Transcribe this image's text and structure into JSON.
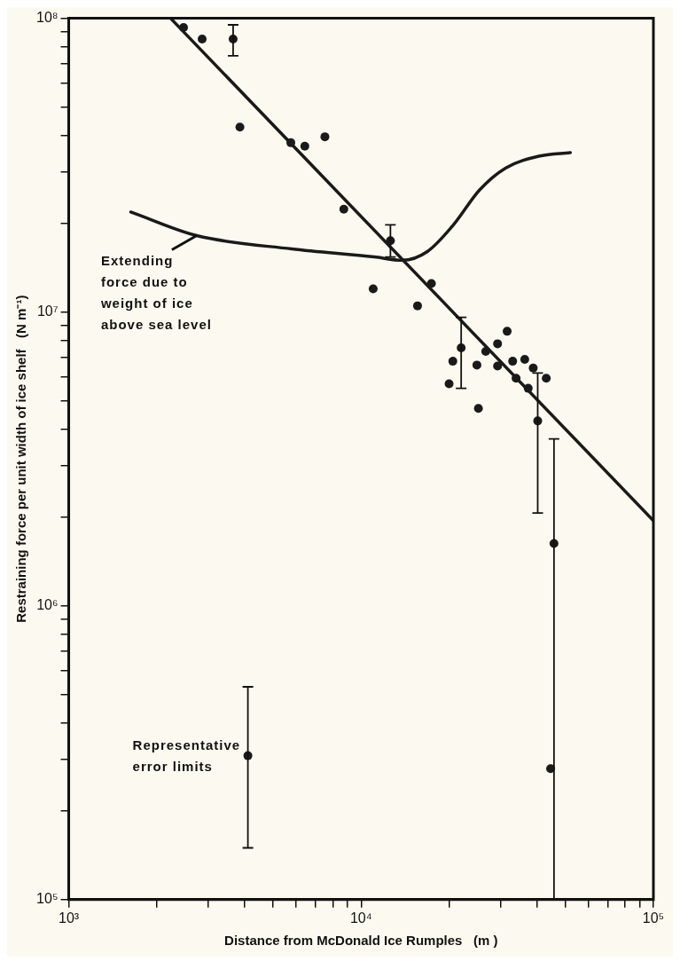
{
  "chart_data": {
    "type": "scatter",
    "xlabel": "Distance from McDonald Ice Rumples   (m )",
    "ylabel": "Restraining force per unit width of ice shelf   (N m⁻¹)",
    "log": "xy",
    "grid": false,
    "legend": false,
    "line_style": "solid",
    "xlim": [
      1000,
      100000
    ],
    "xticks": [
      {
        "value": 1000,
        "label": "10³"
      },
      {
        "value": 2000,
        "label": null
      },
      {
        "value": 3000,
        "label": null
      },
      {
        "value": 4000,
        "label": null
      },
      {
        "value": 5000,
        "label": null
      },
      {
        "value": 6000,
        "label": null
      },
      {
        "value": 7000,
        "label": null
      },
      {
        "value": 8000,
        "label": null
      },
      {
        "value": 9000,
        "label": null
      },
      {
        "value": 10000,
        "label": "10⁴"
      },
      {
        "value": 20000,
        "label": null
      },
      {
        "value": 30000,
        "label": null
      },
      {
        "value": 40000,
        "label": null
      },
      {
        "value": 50000,
        "label": null
      },
      {
        "value": 60000,
        "label": null
      },
      {
        "value": 70000,
        "label": null
      },
      {
        "value": 80000,
        "label": null
      },
      {
        "value": 90000,
        "label": null
      },
      {
        "value": 100000,
        "label": "10⁵"
      }
    ],
    "ylim": [
      100000,
      100000000
    ],
    "yticks": [
      {
        "value": 100000,
        "label": "10⁵"
      },
      {
        "value": 200000,
        "label": null
      },
      {
        "value": 300000,
        "label": null
      },
      {
        "value": 400000,
        "label": null
      },
      {
        "value": 500000,
        "label": null
      },
      {
        "value": 600000,
        "label": null
      },
      {
        "value": 700000,
        "label": null
      },
      {
        "value": 800000,
        "label": null
      },
      {
        "value": 900000,
        "label": null
      },
      {
        "value": 1000000,
        "label": "10⁶"
      },
      {
        "value": 2000000,
        "label": null
      },
      {
        "value": 3000000,
        "label": null
      },
      {
        "value": 4000000,
        "label": null
      },
      {
        "value": 5000000,
        "label": null
      },
      {
        "value": 6000000,
        "label": null
      },
      {
        "value": 7000000,
        "label": null
      },
      {
        "value": 8000000,
        "label": null
      },
      {
        "value": 9000000,
        "label": null
      },
      {
        "value": 10000000,
        "label": "10⁷"
      },
      {
        "value": 20000000,
        "label": null
      },
      {
        "value": 30000000,
        "label": null
      },
      {
        "value": 40000000,
        "label": null
      },
      {
        "value": 50000000,
        "label": null
      },
      {
        "value": 60000000,
        "label": null
      },
      {
        "value": 70000000,
        "label": null
      },
      {
        "value": 80000000,
        "label": null
      },
      {
        "value": 90000000,
        "label": null
      },
      {
        "value": 100000000,
        "label": "10⁸"
      }
    ],
    "series": [
      {
        "marker": "circle",
        "color": "#1a1a1a",
        "x": [
          2470,
          2860,
          3650,
          3850,
          5750,
          6420,
          7520,
          8730,
          12600,
          11000,
          17400,
          15600,
          22000,
          20600,
          20000,
          24900,
          25200,
          26700,
          29300,
          31600,
          29300,
          33000,
          33900,
          36300,
          37300,
          38800,
          43000,
          40200,
          45700,
          44500,
          4100
        ],
        "values": [
          93000000,
          85000000,
          85000000,
          42600000,
          37700000,
          36700000,
          39500000,
          22400000,
          17500000,
          12000000,
          12500000,
          10500000,
          7550000,
          6800000,
          5700000,
          6600000,
          4700000,
          7350000,
          7800000,
          8600000,
          6550000,
          6800000,
          5950000,
          6900000,
          5500000,
          6450000,
          5950000,
          4260000,
          1630000,
          279000,
          309000
        ],
        "errors": [
          null,
          null,
          [
            74500000,
            95000000
          ],
          null,
          null,
          null,
          null,
          null,
          [
            15400000,
            19800000
          ],
          null,
          null,
          null,
          [
            5500000,
            9600000
          ],
          null,
          null,
          null,
          null,
          null,
          null,
          null,
          null,
          null,
          null,
          null,
          null,
          null,
          null,
          [
            2070000,
            6200000
          ],
          [
            100000,
            3700000
          ],
          null,
          [
            150000,
            530000
          ]
        ]
      },
      {
        "type": "line",
        "color": "#1a1a1a",
        "x": [
          2230,
          100000
        ],
        "values": [
          100000000,
          1950000
        ]
      },
      {
        "type": "line",
        "color": "#1a1a1a",
        "x": [
          1630,
          2740,
          5800,
          11100,
          13800,
          16900,
          20700,
          25400,
          31200,
          41000,
          52000
        ],
        "values": [
          21900000,
          18200000,
          16400000,
          15400000,
          15000000,
          16100000,
          19800000,
          26000000,
          30900000,
          34000000,
          34900000
        ]
      }
    ],
    "annotations": [
      {
        "text": "Extending\nforce due to\nweight of ice\nabove sea level",
        "x": 2740,
        "y": 18200000
      },
      {
        "text": "Representative\nerror limits",
        "x": 4100,
        "y": 309000
      }
    ]
  }
}
